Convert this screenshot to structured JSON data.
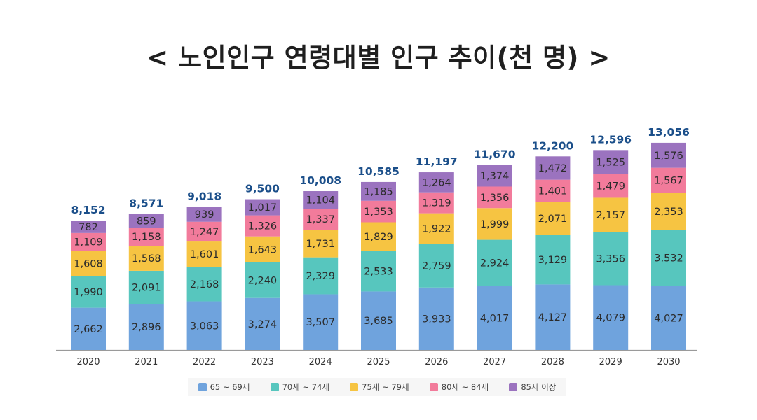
{
  "chart_data": {
    "type": "bar",
    "stacked": true,
    "title": "< 노인인구 연령대별 인구 추이(천 명) >",
    "categories": [
      "2020",
      "2021",
      "2022",
      "2023",
      "2024",
      "2025",
      "2026",
      "2027",
      "2028",
      "2029",
      "2030"
    ],
    "series": [
      {
        "name": "65 ~ 69세",
        "color": "#6fa3dd",
        "values": [
          2662,
          2896,
          3063,
          3274,
          3507,
          3685,
          3933,
          4017,
          4127,
          4079,
          4027
        ]
      },
      {
        "name": "70세 ~ 74세",
        "color": "#57c6be",
        "values": [
          1990,
          2091,
          2168,
          2240,
          2329,
          2533,
          2759,
          2924,
          3129,
          3356,
          3532
        ]
      },
      {
        "name": "75세 ~ 79세",
        "color": "#f6c442",
        "values": [
          1608,
          1568,
          1601,
          1643,
          1731,
          1829,
          1922,
          1999,
          2071,
          2157,
          2353
        ]
      },
      {
        "name": "80세 ~ 84세",
        "color": "#f27b9b",
        "values": [
          1109,
          1158,
          1247,
          1326,
          1337,
          1353,
          1319,
          1356,
          1401,
          1479,
          1567
        ]
      },
      {
        "name": "85세 이상",
        "color": "#9b73bf",
        "values": [
          782,
          859,
          939,
          1017,
          1104,
          1185,
          1264,
          1374,
          1472,
          1525,
          1576
        ]
      }
    ],
    "totals": [
      "8,152",
      "8,571",
      "9,018",
      "9,500",
      "10,008",
      "10,585",
      "11,197",
      "11,670",
      "12,200",
      "12,596",
      "13,056"
    ],
    "total_label_color": "#1b4f8a",
    "legend_position": "bottom",
    "grid": false
  }
}
